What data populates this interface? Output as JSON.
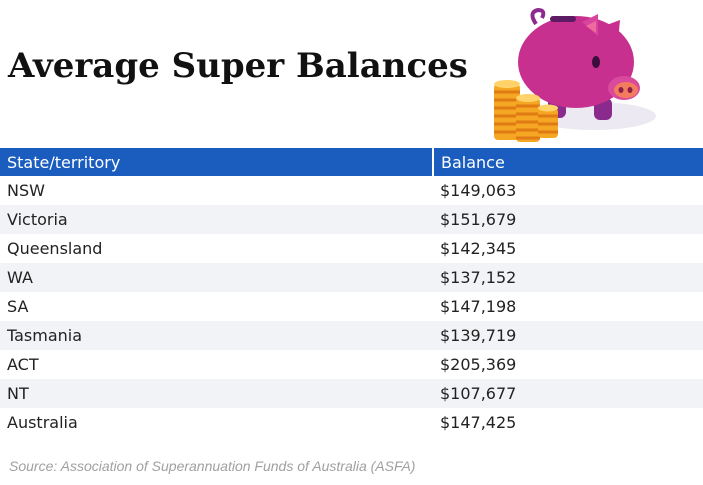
{
  "title": "Average Super Balances",
  "illustration": "piggy-bank-with-coins",
  "colors": {
    "header_bg": "#1a5dbf",
    "header_text": "#ffffff",
    "row_alt": "#f1f3f6",
    "pig": "#c8308f",
    "coin": "#f5a623"
  },
  "table": {
    "headers": [
      "State/territory",
      "Balance"
    ],
    "rows": [
      [
        "NSW",
        "$149,063"
      ],
      [
        "Victoria",
        "$151,679"
      ],
      [
        "Queensland",
        "$142,345"
      ],
      [
        "WA",
        "$137,152"
      ],
      [
        "SA",
        "$147,198"
      ],
      [
        "Tasmania",
        "$139,719"
      ],
      [
        "ACT",
        "$205,369"
      ],
      [
        "NT",
        "$107,677"
      ],
      [
        "Australia",
        "$147,425"
      ]
    ]
  },
  "source": "Source: Association of Superannuation Funds of Australia (ASFA)"
}
